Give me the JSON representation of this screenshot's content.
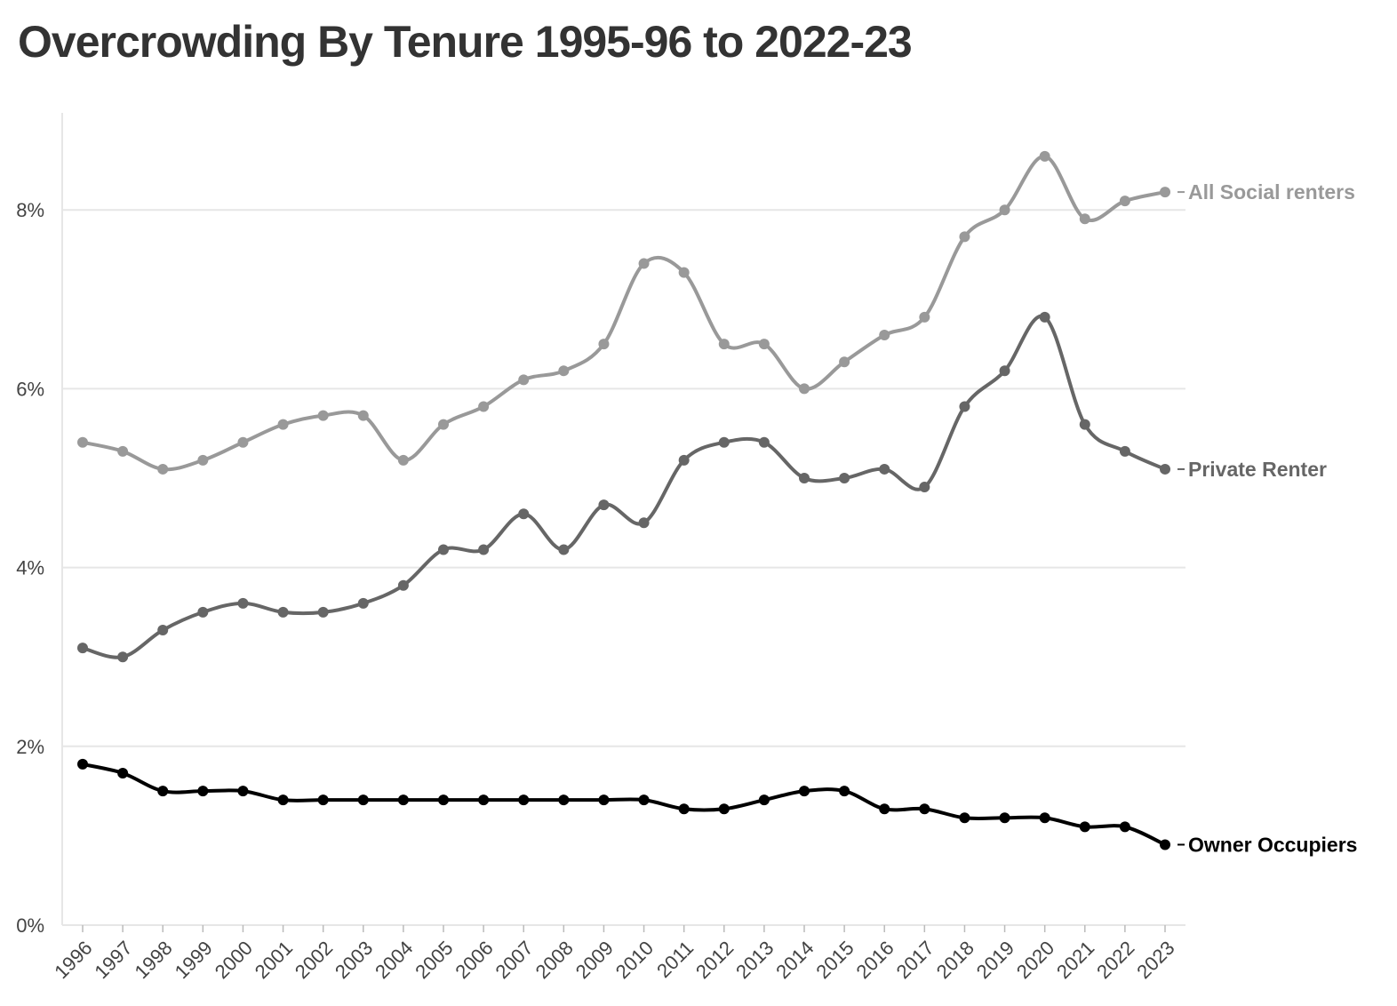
{
  "chart_data": {
    "type": "line",
    "title": "Overcrowding By Tenure 1995-96 to 2022-23",
    "xlabel": "",
    "ylabel": "",
    "x": [
      "1996",
      "1997",
      "1998",
      "1999",
      "2000",
      "2001",
      "2002",
      "2003",
      "2004",
      "2005",
      "2006",
      "2007",
      "2008",
      "2009",
      "2010",
      "2011",
      "2012",
      "2013",
      "2014",
      "2015",
      "2016",
      "2017",
      "2018",
      "2019",
      "2020",
      "2021",
      "2022",
      "2023"
    ],
    "ylim": [
      0,
      9
    ],
    "yticks": [
      0,
      2,
      4,
      6,
      8
    ],
    "ytick_labels": [
      "0%",
      "2%",
      "4%",
      "6%",
      "8%"
    ],
    "grid": "horizontal",
    "legend": "direct labels at right end of lines",
    "series": [
      {
        "name": "All Social renters",
        "color": "#999999",
        "values": [
          5.4,
          5.3,
          5.1,
          5.2,
          5.4,
          5.6,
          5.7,
          5.7,
          5.2,
          5.6,
          5.8,
          6.1,
          6.2,
          6.5,
          7.4,
          7.3,
          6.5,
          6.5,
          6.0,
          6.3,
          6.6,
          6.8,
          7.7,
          8.0,
          8.6,
          7.9,
          8.1,
          8.2
        ]
      },
      {
        "name": "Private Renter",
        "color": "#666666",
        "values": [
          3.1,
          3.0,
          3.3,
          3.5,
          3.6,
          3.5,
          3.5,
          3.6,
          3.8,
          4.2,
          4.2,
          4.6,
          4.2,
          4.7,
          4.5,
          5.2,
          5.4,
          5.4,
          5.0,
          5.0,
          5.1,
          4.9,
          5.8,
          6.2,
          6.8,
          5.6,
          5.3,
          5.1
        ]
      },
      {
        "name": "Owner Occupiers",
        "color": "#000000",
        "values": [
          1.8,
          1.7,
          1.5,
          1.5,
          1.5,
          1.4,
          1.4,
          1.4,
          1.4,
          1.4,
          1.4,
          1.4,
          1.4,
          1.4,
          1.4,
          1.3,
          1.3,
          1.4,
          1.5,
          1.5,
          1.3,
          1.3,
          1.2,
          1.2,
          1.2,
          1.1,
          1.1,
          0.9
        ]
      }
    ]
  }
}
